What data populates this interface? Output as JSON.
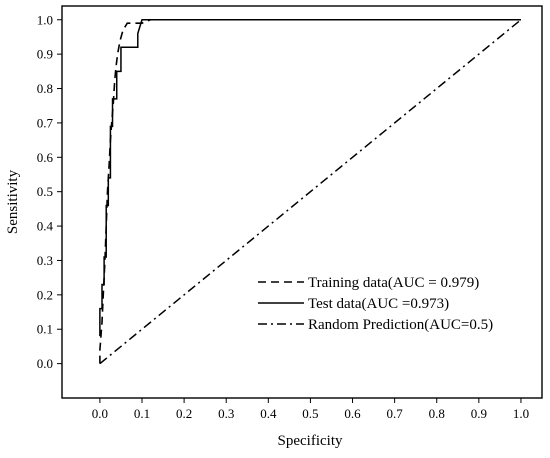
{
  "chart_data": {
    "type": "line",
    "xlabel": "Specificity",
    "ylabel": "Sensitivity",
    "xlim": [
      -0.09,
      1.05
    ],
    "ylim": [
      -0.1,
      1.04
    ],
    "x_ticks": [
      "0.0",
      "0.1",
      "0.2",
      "0.3",
      "0.4",
      "0.5",
      "0.6",
      "0.7",
      "0.8",
      "0.9",
      "1.0"
    ],
    "y_ticks": [
      "0.0",
      "0.1",
      "0.2",
      "0.3",
      "0.4",
      "0.5",
      "0.6",
      "0.7",
      "0.8",
      "0.9",
      "1.0"
    ],
    "grid": false,
    "legend_position": "bottom-right",
    "series": [
      {
        "name": "Training data(AUC = 0.979)",
        "style": "dashed",
        "x": [
          0.0,
          0.0,
          0.005,
          0.008,
          0.012,
          0.015,
          0.018,
          0.022,
          0.025,
          0.028,
          0.032,
          0.035,
          0.038,
          0.042,
          0.048,
          0.055,
          0.065,
          0.08,
          0.1,
          0.12,
          1.0
        ],
        "y": [
          0.0,
          0.04,
          0.12,
          0.2,
          0.3,
          0.4,
          0.5,
          0.58,
          0.65,
          0.7,
          0.76,
          0.82,
          0.86,
          0.9,
          0.94,
          0.97,
          0.99,
          0.99,
          0.99,
          1.0,
          1.0
        ]
      },
      {
        "name": "Test data(AUC =0.973)",
        "style": "solid",
        "x": [
          0.0,
          0.0,
          0.005,
          0.005,
          0.01,
          0.01,
          0.015,
          0.015,
          0.02,
          0.02,
          0.025,
          0.025,
          0.03,
          0.03,
          0.04,
          0.04,
          0.05,
          0.05,
          0.09,
          0.09,
          0.1,
          1.0
        ],
        "y": [
          0.08,
          0.16,
          0.16,
          0.23,
          0.23,
          0.31,
          0.31,
          0.46,
          0.46,
          0.54,
          0.54,
          0.69,
          0.69,
          0.77,
          0.77,
          0.85,
          0.85,
          0.92,
          0.92,
          0.96,
          1.0,
          1.0
        ]
      },
      {
        "name": "Random Prediction(AUC=0.5)",
        "style": "dashdot",
        "x": [
          0.0,
          1.0
        ],
        "y": [
          0.0,
          1.0
        ]
      }
    ]
  }
}
